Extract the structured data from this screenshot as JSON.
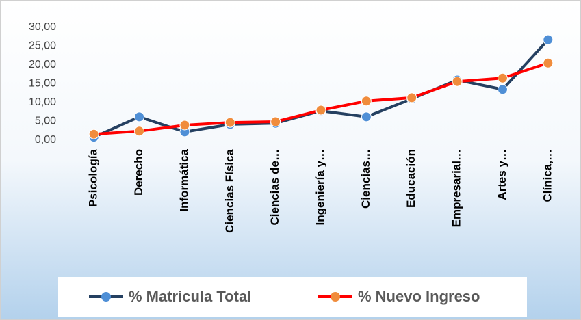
{
  "chart_data": {
    "type": "line",
    "categories": [
      "Psicología",
      "Derecho",
      "Informática",
      "Ciencias Física",
      "Ciencias de…",
      "Ingeniería y…",
      "Ciencias…",
      "Educación",
      "Empresarial…",
      "Artes y…",
      "Clínica,…"
    ],
    "series": [
      {
        "name": "% Matricula Total",
        "color": "#254061",
        "marker_color": "#4f8fd6",
        "values": [
          0.8,
          6.2,
          2.2,
          4.2,
          4.5,
          7.8,
          6.2,
          11.0,
          16.0,
          13.5,
          26.7
        ]
      },
      {
        "name": "% Nuevo Ingreso",
        "color": "#ff0000",
        "marker_color": "#f08c3c",
        "values": [
          1.6,
          2.4,
          4.0,
          4.7,
          4.9,
          8.0,
          10.4,
          11.3,
          15.6,
          16.5,
          20.5
        ]
      }
    ],
    "ylim": [
      0,
      30
    ],
    "yticks": [
      {
        "value": 0,
        "label": "0,00"
      },
      {
        "value": 5,
        "label": "5,00"
      },
      {
        "value": 10,
        "label": "10,00"
      },
      {
        "value": 15,
        "label": "15,00"
      },
      {
        "value": 20,
        "label": "20,00"
      },
      {
        "value": 25,
        "label": "25,00"
      },
      {
        "value": 30,
        "label": "30,00"
      }
    ],
    "grid": false,
    "legend": "bottom"
  }
}
